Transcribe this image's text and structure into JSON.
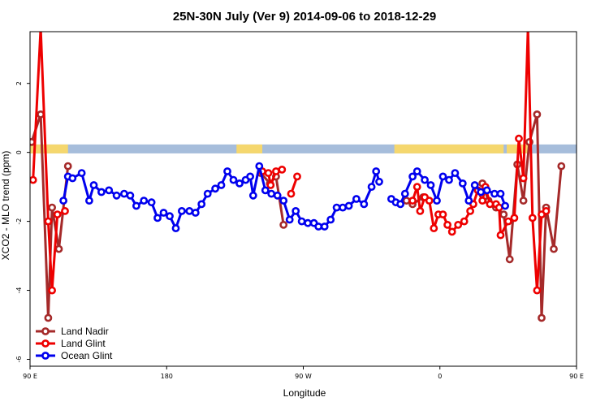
{
  "chart_data": {
    "type": "line",
    "title": "25N-30N July (Ver 9)   2014-09-06 to 2018-12-29",
    "xlabel": "Longitude",
    "ylabel": "XCO2 - MLO trend (ppm)",
    "xlim": [
      90,
      450
    ],
    "ylim": [
      -6.2,
      3.5
    ],
    "x_ticks": [
      {
        "value": 90,
        "label": "90 E"
      },
      {
        "value": 180,
        "label": "180"
      },
      {
        "value": 270,
        "label": "90 W"
      },
      {
        "value": 360,
        "label": "0"
      },
      {
        "value": 450,
        "label": "90 E"
      },
      {
        "value": 540,
        "label": "180"
      }
    ],
    "y_ticks": [
      {
        "value": 2,
        "label": "2"
      },
      {
        "value": 0,
        "label": "0"
      },
      {
        "value": -2,
        "label": "-2"
      },
      {
        "value": -4,
        "label": "-4"
      },
      {
        "value": -6,
        "label": "-6"
      }
    ],
    "landmask": {
      "y_center": 0.1,
      "land_color": "#f5d76e",
      "ocean_color": "#a6bddb",
      "land_intervals": [
        [
          90,
          115
        ],
        [
          226,
          243
        ],
        [
          330,
          402
        ],
        [
          404,
          418
        ]
      ]
    },
    "legend": {
      "placement": "bottom-left",
      "entries": [
        "Land Nadir",
        "Land Glint",
        "Ocean Glint"
      ]
    },
    "series": [
      {
        "name": "Land Nadir",
        "color": "#a52a2a",
        "segments": [
          [
            [
              91,
              0.3
            ],
            [
              97,
              1.1
            ],
            [
              102,
              -4.8
            ],
            [
              104.5,
              -1.6
            ],
            [
              109,
              -2.8
            ],
            [
              115,
              -0.4
            ]
          ],
          [
            [
              242,
              -0.6
            ],
            [
              248,
              -0.9
            ],
            [
              252,
              -0.7
            ],
            [
              257,
              -2.1
            ]
          ],
          [
            [
              338,
              -1.4
            ],
            [
              342,
              -1.5
            ],
            [
              349,
              -1.3
            ]
          ],
          [
            [
              388,
              -0.9
            ],
            [
              392,
              -1.4
            ],
            [
              397,
              -1.6
            ],
            [
              402,
              -1.8
            ],
            [
              406,
              -3.1
            ],
            [
              411,
              -0.35
            ],
            [
              415,
              -1.4
            ],
            [
              419,
              0.3
            ],
            [
              424,
              1.1
            ],
            [
              427,
              -4.8
            ],
            [
              430,
              -1.6
            ],
            [
              435,
              -2.8
            ],
            [
              440,
              -0.4
            ]
          ]
        ]
      },
      {
        "name": "Land Glint",
        "color": "#ee0000",
        "segments": [
          [
            [
              92,
              -0.8
            ],
            [
              97,
              3.6
            ],
            [
              102,
              -2.0
            ],
            [
              104.5,
              -4.0
            ],
            [
              108,
              -1.8
            ],
            [
              113,
              -1.7
            ]
          ],
          [
            [
              243,
              -0.55
            ],
            [
              247,
              -0.6
            ],
            [
              248.5,
              -0.95
            ],
            [
              252,
              -0.55
            ],
            [
              256,
              -0.5
            ]
          ],
          [
            [
              262,
              -1.2
            ],
            [
              266,
              -0.7
            ]
          ],
          [
            [
              342,
              -1.4
            ],
            [
              345,
              -1.0
            ],
            [
              347,
              -1.7
            ],
            [
              350,
              -1.3
            ],
            [
              353,
              -1.4
            ],
            [
              356,
              -2.2
            ],
            [
              359,
              -1.8
            ],
            [
              362,
              -1.8
            ],
            [
              365,
              -2.1
            ],
            [
              368,
              -2.3
            ],
            [
              372,
              -2.1
            ],
            [
              376,
              -2.0
            ],
            [
              380,
              -1.7
            ],
            [
              382,
              -1.5
            ],
            [
              385,
              -1.1
            ],
            [
              388,
              -1.4
            ],
            [
              390,
              -1.0
            ],
            [
              393,
              -1.5
            ],
            [
              397,
              -1.5
            ],
            [
              399,
              -1.6
            ],
            [
              400,
              -2.4
            ],
            [
              405,
              -2.0
            ],
            [
              409,
              -1.9
            ],
            [
              412,
              0.4
            ],
            [
              415,
              -0.75
            ],
            [
              418,
              3.6
            ],
            [
              421,
              -1.9
            ],
            [
              424,
              -4.0
            ],
            [
              427,
              -1.8
            ],
            [
              430,
              -1.7
            ]
          ]
        ]
      },
      {
        "name": "Ocean Glint",
        "color": "#0000ee",
        "segments": [
          [
            [
              112,
              -1.4
            ],
            [
              115,
              -0.7
            ],
            [
              118,
              -0.75
            ],
            [
              124,
              -0.6
            ],
            [
              129,
              -1.4
            ],
            [
              132,
              -0.95
            ],
            [
              137,
              -1.15
            ],
            [
              142,
              -1.1
            ],
            [
              147,
              -1.25
            ],
            [
              152,
              -1.2
            ],
            [
              156,
              -1.25
            ],
            [
              160,
              -1.55
            ],
            [
              165,
              -1.4
            ],
            [
              170,
              -1.45
            ],
            [
              174,
              -1.9
            ],
            [
              178,
              -1.75
            ],
            [
              182,
              -1.85
            ],
            [
              186,
              -2.2
            ],
            [
              190,
              -1.7
            ],
            [
              195,
              -1.7
            ],
            [
              199,
              -1.75
            ],
            [
              203,
              -1.5
            ],
            [
              207,
              -1.2
            ],
            [
              212,
              -1.05
            ],
            [
              216,
              -0.95
            ],
            [
              220,
              -0.55
            ],
            [
              224,
              -0.8
            ],
            [
              228,
              -0.9
            ],
            [
              232,
              -0.8
            ],
            [
              235,
              -0.7
            ],
            [
              237,
              -1.25
            ],
            [
              241,
              -0.4
            ],
            [
              245,
              -1.1
            ],
            [
              249,
              -1.2
            ],
            [
              253,
              -1.25
            ],
            [
              257,
              -1.4
            ],
            [
              261,
              -1.95
            ],
            [
              265,
              -1.7
            ],
            [
              269,
              -2.0
            ],
            [
              273,
              -2.05
            ],
            [
              277,
              -2.05
            ],
            [
              280,
              -2.15
            ],
            [
              284,
              -2.15
            ],
            [
              288,
              -1.95
            ],
            [
              292,
              -1.6
            ],
            [
              296,
              -1.6
            ],
            [
              300,
              -1.55
            ],
            [
              305,
              -1.35
            ],
            [
              310,
              -1.5
            ],
            [
              315,
              -1.0
            ],
            [
              318,
              -0.55
            ],
            [
              320,
              -0.85
            ]
          ],
          [
            [
              328,
              -1.35
            ],
            [
              331,
              -1.45
            ],
            [
              334,
              -1.5
            ],
            [
              337,
              -1.2
            ],
            [
              342,
              -0.7
            ],
            [
              345,
              -0.55
            ],
            [
              350,
              -0.8
            ],
            [
              354,
              -0.95
            ],
            [
              358,
              -1.4
            ],
            [
              362,
              -0.7
            ],
            [
              366,
              -0.8
            ],
            [
              370,
              -0.6
            ],
            [
              375,
              -0.9
            ],
            [
              379,
              -1.4
            ],
            [
              383,
              -0.95
            ],
            [
              387,
              -1.15
            ],
            [
              391,
              -1.1
            ],
            [
              396,
              -1.2
            ],
            [
              400,
              -1.2
            ],
            [
              403,
              -1.55
            ]
          ]
        ]
      }
    ]
  }
}
